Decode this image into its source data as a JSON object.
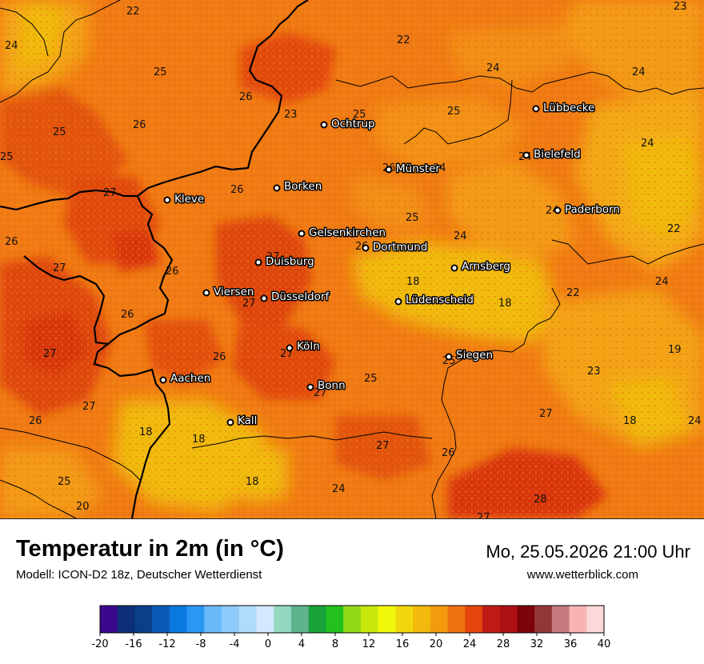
{
  "title": "Temperatur in 2m (in °C)",
  "model": "Modell: ICON-D2 18z, Deutscher Wetterdienst",
  "datetime": "Mo, 25.05.2026 21:00 Uhr",
  "website": "www.wetterblick.com",
  "cities": [
    {
      "name": "Lübbecke",
      "key": "luebbecke"
    },
    {
      "name": "Ochtrup",
      "key": "ochtrup"
    },
    {
      "name": "Bielefeld",
      "key": "bielefeld"
    },
    {
      "name": "Münster",
      "key": "muenster"
    },
    {
      "name": "Borken",
      "key": "borken"
    },
    {
      "name": "Kleve",
      "key": "kleve"
    },
    {
      "name": "Paderborn",
      "key": "paderborn"
    },
    {
      "name": "Gelsenkirchen",
      "key": "gelsenkirchen"
    },
    {
      "name": "Dortmund",
      "key": "dortmund"
    },
    {
      "name": "Duisburg",
      "key": "duisburg"
    },
    {
      "name": "Arnsberg",
      "key": "arnsberg"
    },
    {
      "name": "Viersen",
      "key": "viersen"
    },
    {
      "name": "Düsseldorf",
      "key": "duesseldorf"
    },
    {
      "name": "Lüdenscheid",
      "key": "luedenscheid"
    },
    {
      "name": "Köln",
      "key": "koeln"
    },
    {
      "name": "Siegen",
      "key": "siegen"
    },
    {
      "name": "Aachen",
      "key": "aachen"
    },
    {
      "name": "Bonn",
      "key": "bonn"
    },
    {
      "name": "Kall",
      "key": "kall"
    }
  ],
  "temperature_labels": [
    "22",
    "23",
    "24",
    "22",
    "24",
    "25",
    "26",
    "23",
    "25",
    "25",
    "24",
    "26",
    "25",
    "25",
    "24",
    "27",
    "26",
    "26",
    "24",
    "24",
    "26",
    "25",
    "24",
    "27",
    "26",
    "27",
    "24",
    "22",
    "26",
    "18",
    "27",
    "26",
    "18",
    "22",
    "24",
    "27",
    "26",
    "19",
    "27",
    "27",
    "25",
    "23",
    "27",
    "25",
    "26",
    "27",
    "18",
    "18",
    "18",
    "27",
    "26",
    "24",
    "25",
    "24",
    "18",
    "28",
    "20",
    "27"
  ],
  "colorbar": {
    "ticks": [
      "-20",
      "-16",
      "-12",
      "-8",
      "-4",
      "0",
      "4",
      "8",
      "12",
      "16",
      "20",
      "24",
      "28",
      "32",
      "36",
      "40"
    ],
    "colors": [
      "#3b0a8c",
      "#0d2f78",
      "#0b3f8a",
      "#0a5bb8",
      "#0a7ae0",
      "#2a98f5",
      "#6bb9f9",
      "#8ecbfb",
      "#b0dcfc",
      "#d3e9fd",
      "#93d9bf",
      "#5fb38d",
      "#17a23a",
      "#22c11c",
      "#92d91a",
      "#c8e80c",
      "#f2f80a",
      "#f1d80e",
      "#f3b90d",
      "#f49b0d",
      "#f07212",
      "#e6460e",
      "#c11b17",
      "#ad1115",
      "#7d0408",
      "#93363a",
      "#c57b7d",
      "#f7b4b3",
      "#fdd8d8"
    ],
    "color_count": 29
  },
  "legend_colors": {
    "temp_18": "#f0b90f",
    "temp_22": "#f39813",
    "temp_24": "#f07a14",
    "temp_26": "#ec5a12",
    "temp_28": "#d8340d",
    "borders": "#000000"
  }
}
